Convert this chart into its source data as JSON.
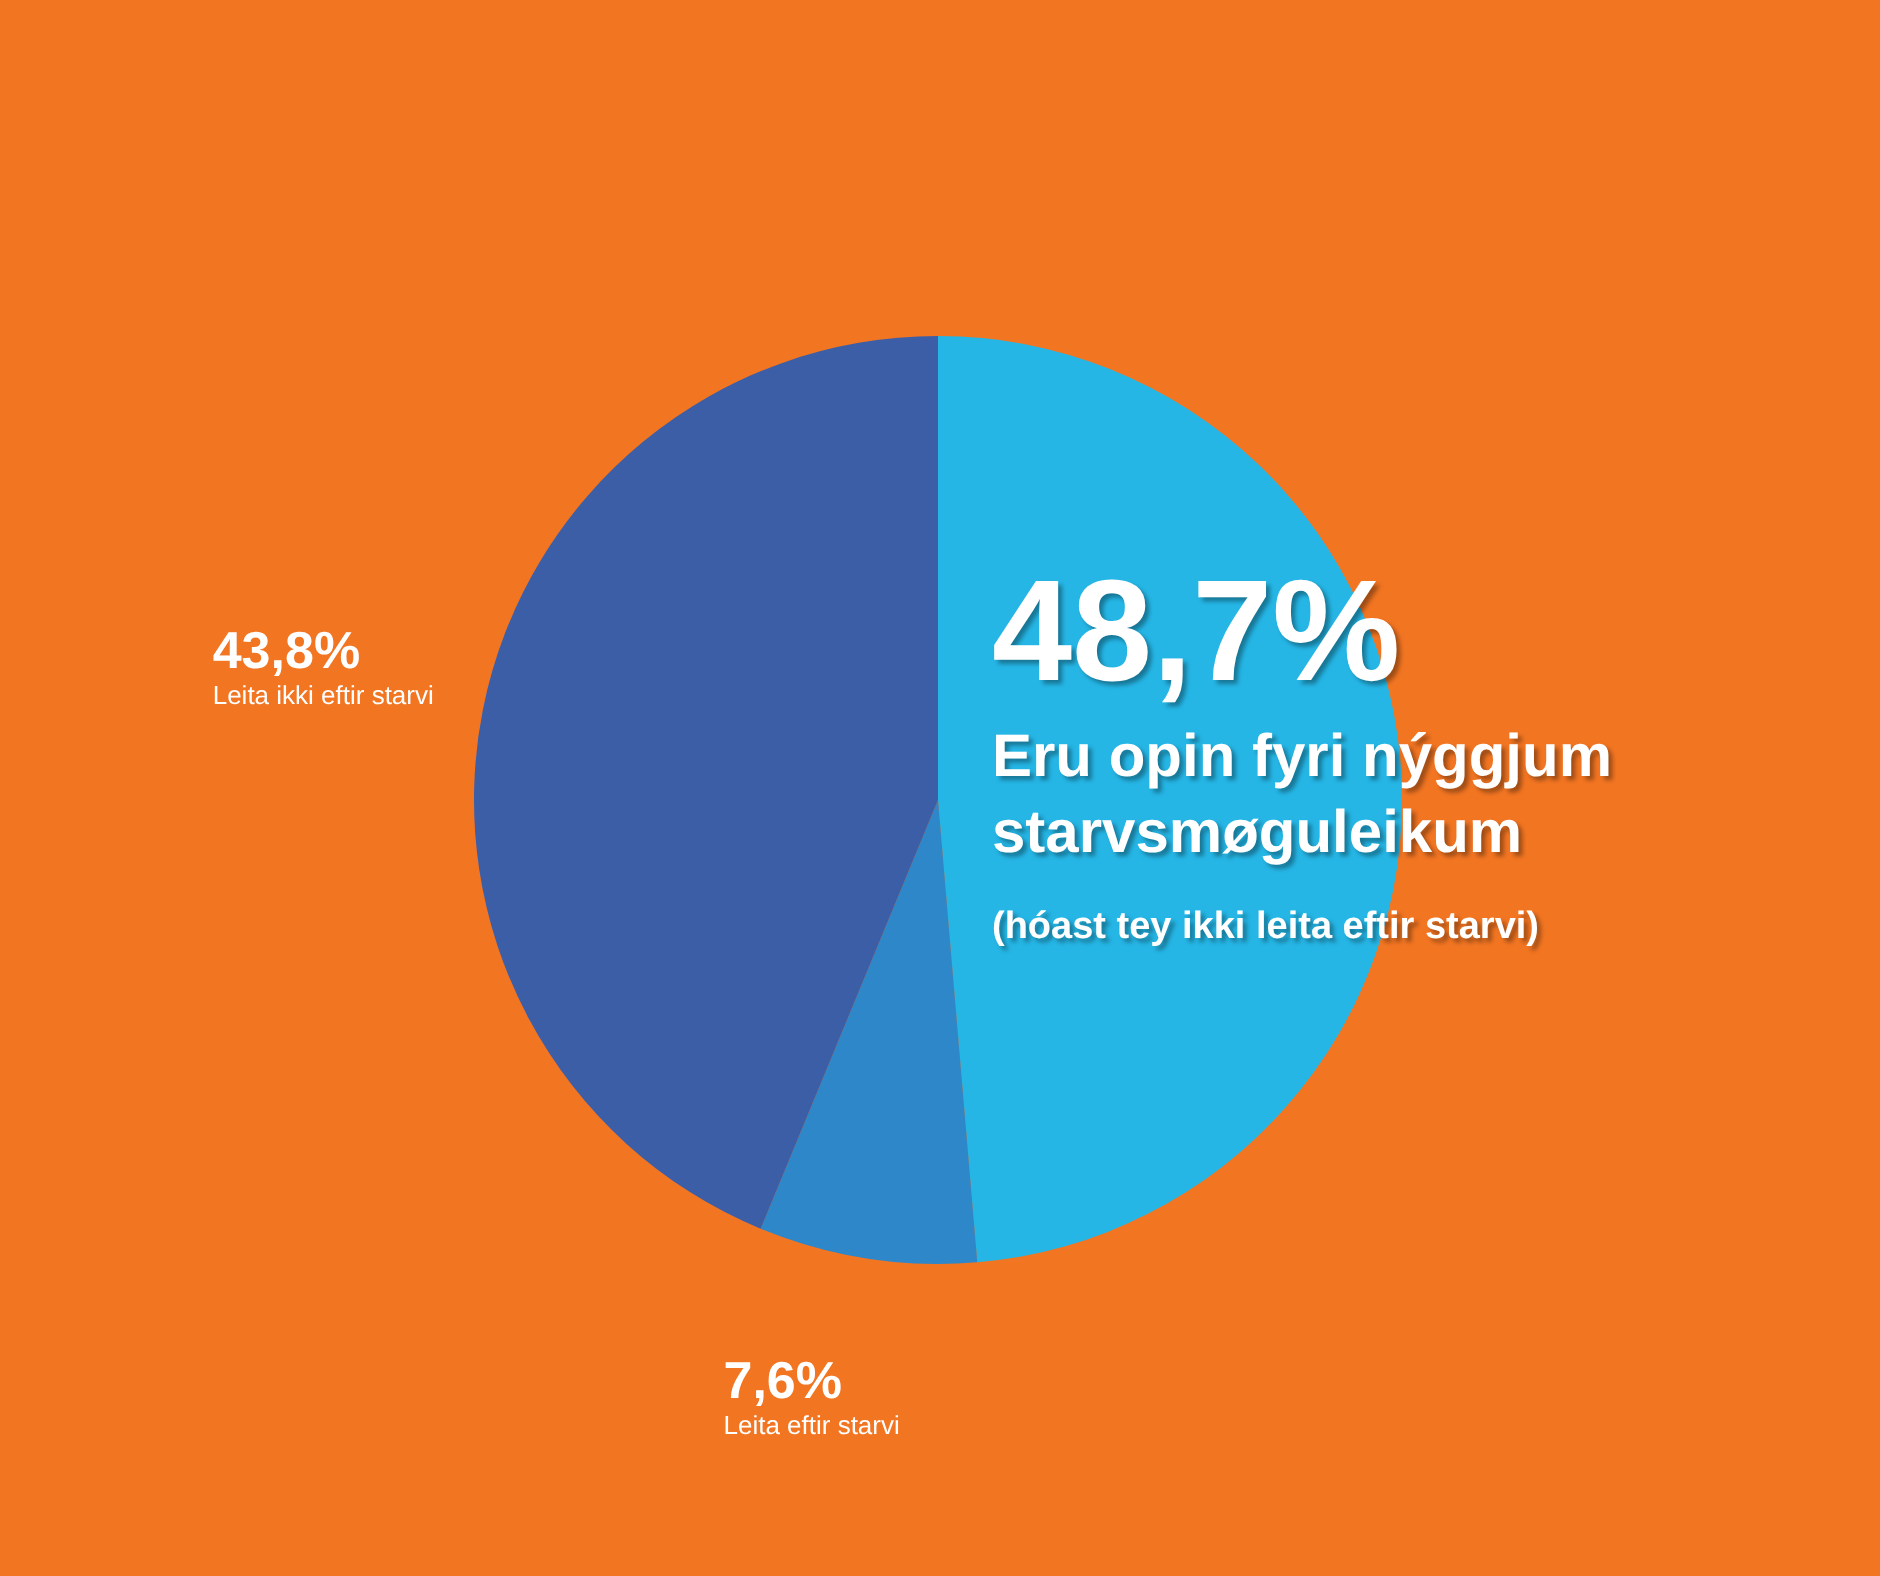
{
  "chart_data": {
    "type": "pie",
    "categories": [
      "Eru opin fyri nýggjum starvsmøguleikum",
      "Leita eftir starvi",
      "Leita ikki eftir starvi"
    ],
    "values": [
      48.7,
      7.6,
      43.8
    ],
    "value_labels": [
      "48,7%",
      "7,6%",
      "43,8%"
    ],
    "colors": [
      "#25b6e6",
      "#2d87c9",
      "#3b5ea7"
    ],
    "annotations": [
      "(hóast tey ikki leita eftir starvi)"
    ]
  }
}
